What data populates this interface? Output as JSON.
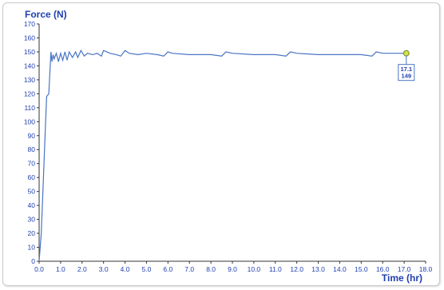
{
  "chart_data": {
    "type": "line",
    "title": "",
    "ylabel": "Force (N)",
    "xlabel": "Time (hr)",
    "xlim": [
      0,
      18
    ],
    "ylim": [
      0,
      170
    ],
    "x_ticks": [
      "0.0",
      "1.0",
      "2.0",
      "3.0",
      "4.0",
      "5.0",
      "6.0",
      "7.0",
      "8.0",
      "9.0",
      "10.0",
      "11.0",
      "12.0",
      "13.0",
      "14.0",
      "15.0",
      "16.0",
      "17.0",
      "18.0"
    ],
    "y_ticks": [
      "0",
      "10",
      "20",
      "30",
      "40",
      "50",
      "60",
      "70",
      "80",
      "90",
      "100",
      "110",
      "120",
      "130",
      "140",
      "150",
      "160",
      "170"
    ],
    "grid": false,
    "series_color": "#4a74c4",
    "series": [
      {
        "x": [
          0.0,
          0.1,
          0.2,
          0.3,
          0.35,
          0.45,
          0.55,
          0.6,
          0.65,
          0.7,
          0.8,
          0.9,
          1.0,
          1.1,
          1.2,
          1.3,
          1.4,
          1.55,
          1.7,
          1.8,
          1.95,
          2.1,
          2.25,
          2.5,
          2.7,
          2.9,
          3.0,
          3.3,
          3.6,
          3.8,
          4.0,
          4.2,
          4.6,
          5.0,
          5.5,
          5.8,
          6.0,
          6.2,
          7.0,
          8.0,
          8.5,
          8.7,
          9.0,
          10.0,
          11.0,
          11.5,
          11.7,
          12.0,
          13.0,
          14.0,
          15.0,
          15.5,
          15.7,
          16.0,
          16.5,
          17.1
        ],
        "values": [
          0,
          20,
          60,
          100,
          118,
          120,
          150,
          143,
          148,
          145,
          149,
          143,
          149,
          144,
          150,
          144,
          150,
          146,
          150,
          146,
          151,
          147,
          149,
          148,
          149,
          147,
          151,
          149,
          148,
          147,
          151,
          149,
          148,
          149,
          148,
          147,
          150,
          149,
          148,
          148,
          147,
          150,
          149,
          148,
          148,
          147,
          150,
          149,
          148,
          148,
          148,
          147,
          150,
          149,
          149,
          149
        ]
      }
    ],
    "annotation": {
      "x_label": "17.1",
      "y_label": "149",
      "x": 17.1,
      "y": 149
    }
  },
  "colors": {
    "axis_text": "#1f3fae",
    "marker_fill": "#d8e04a",
    "marker_stroke": "#6a8c2a",
    "callout_border": "#4a74c4"
  }
}
